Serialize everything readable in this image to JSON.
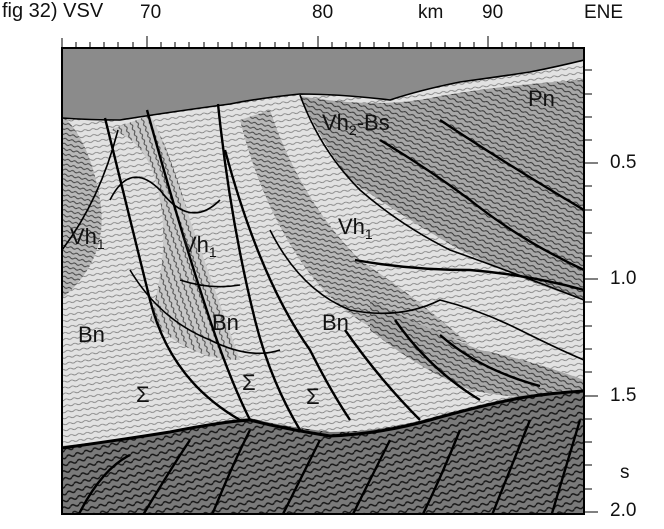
{
  "figure": {
    "label": "fig 32)",
    "west_label": "VSV",
    "east_label": "ENE"
  },
  "axis_top": {
    "unit": "km",
    "ticks": [
      "70",
      "80",
      "90"
    ]
  },
  "axis_right": {
    "unit": "s",
    "ticks": [
      "0.5",
      "1.0",
      "1.5",
      "2.0"
    ]
  },
  "units": [
    {
      "base": "Pn",
      "sub": ""
    },
    {
      "base": "Vh",
      "sub": "2",
      "suffix": "-Bs"
    },
    {
      "base": "Vh",
      "sub": "1",
      "suffix": ""
    },
    {
      "base": "Vh",
      "sub": "1",
      "suffix": ""
    },
    {
      "base": "Vh",
      "sub": "1",
      "suffix": ""
    },
    {
      "base": "Bn",
      "sub": ""
    },
    {
      "base": "Bn",
      "sub": ""
    },
    {
      "base": "Bn",
      "sub": ""
    },
    {
      "base": "Σ",
      "sub": ""
    },
    {
      "base": "Σ",
      "sub": ""
    },
    {
      "base": "Σ",
      "sub": ""
    }
  ],
  "colors": {
    "water": "#8a8a8a",
    "sediment_light": "#dcdcdc",
    "sediment_dark": "#9c9c9c",
    "basement": "#4a4a4a",
    "line": "#000000"
  }
}
